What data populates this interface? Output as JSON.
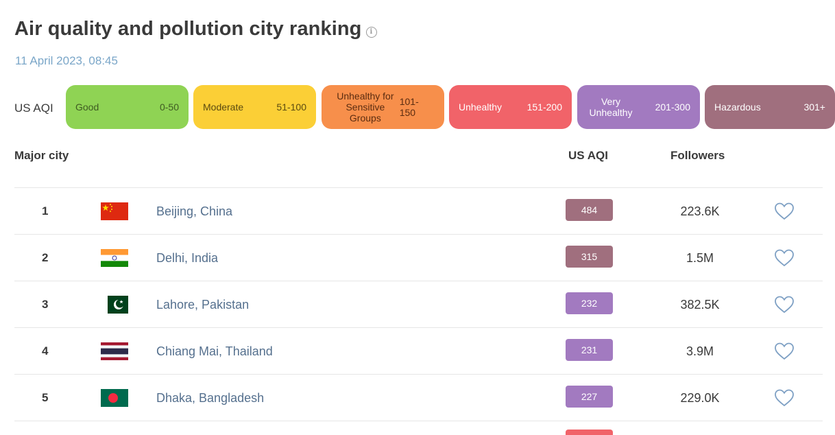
{
  "header": {
    "title": "Air quality and pollution city ranking",
    "info_icon": "info-icon",
    "date": "11 April 2023, 08:45"
  },
  "legend": {
    "label": "US AQI",
    "items": [
      {
        "name": "Good",
        "range": "0-50",
        "color": "#8fd354"
      },
      {
        "name": "Moderate",
        "range": "51-100",
        "color": "#fbcf36"
      },
      {
        "name": "Unhealthy for Sensitive Groups",
        "range": "101-150",
        "color": "#f78f4b"
      },
      {
        "name": "Unhealthy",
        "range": "151-200",
        "color": "#f16369"
      },
      {
        "name": "Very Unhealthy",
        "range": "201-300",
        "color": "#a27ac0"
      },
      {
        "name": "Hazardous",
        "range": "301+",
        "color": "#a06f7e"
      }
    ]
  },
  "table": {
    "columns": {
      "city": "Major city",
      "aqi": "US AQI",
      "followers": "Followers"
    },
    "rows": [
      {
        "rank": "1",
        "flag": "china-flag",
        "city": "Beijing, China",
        "aqi": "484",
        "category": "Hazardous",
        "followers": "223.6K",
        "favorite_icon": "heart-icon"
      },
      {
        "rank": "2",
        "flag": "india-flag",
        "city": "Delhi, India",
        "aqi": "315",
        "category": "Hazardous",
        "followers": "1.5M",
        "favorite_icon": "heart-icon"
      },
      {
        "rank": "3",
        "flag": "pakistan-flag",
        "city": "Lahore, Pakistan",
        "aqi": "232",
        "category": "Very Unhealthy",
        "followers": "382.5K",
        "favorite_icon": "heart-icon"
      },
      {
        "rank": "4",
        "flag": "thailand-flag",
        "city": "Chiang Mai, Thailand",
        "aqi": "231",
        "category": "Very Unhealthy",
        "followers": "3.9M",
        "favorite_icon": "heart-icon"
      },
      {
        "rank": "5",
        "flag": "bangladesh-flag",
        "city": "Dhaka, Bangladesh",
        "aqi": "227",
        "category": "Very Unhealthy",
        "followers": "229.0K",
        "favorite_icon": "heart-icon"
      }
    ]
  }
}
